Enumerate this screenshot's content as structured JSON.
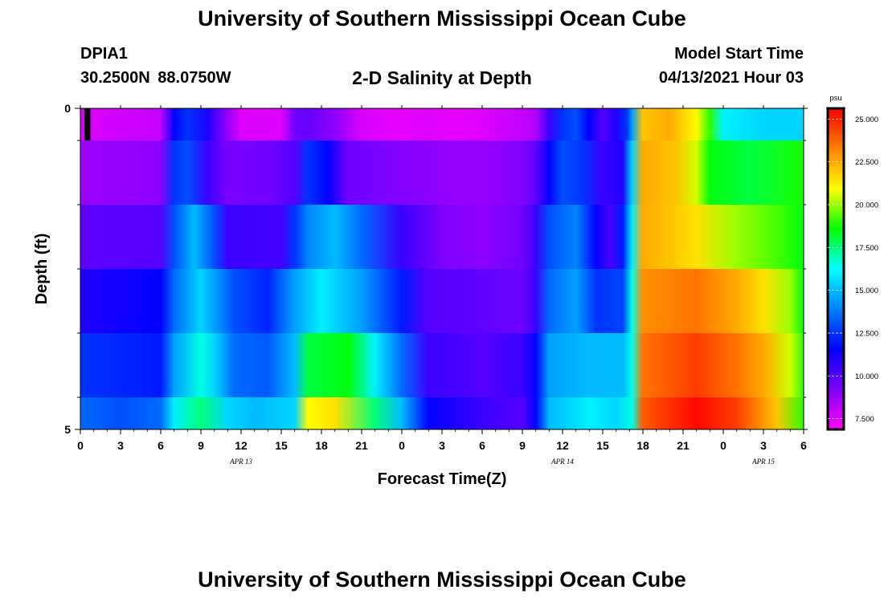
{
  "header": {
    "title": "University of Southern Mississippi Ocean Cube",
    "station_name": "DPIA1",
    "station_coords": "30.2500N  88.0750W",
    "chart_title": "2-D Salinity at Depth",
    "model_start_label": "Model Start Time",
    "model_start_value": "04/13/2021 Hour 03"
  },
  "footer": {
    "title": "University of Southern Mississippi Ocean Cube"
  },
  "colors": {
    "palette": [
      "#ff00ff",
      "#8000ff",
      "#0000ff",
      "#0080ff",
      "#00ffff",
      "#00ff00",
      "#ffff00",
      "#ff8000",
      "#ff0000"
    ]
  },
  "chart_data": {
    "type": "heatmap",
    "title": "2-D Salinity at Depth",
    "xlabel": "Forecast Time(Z)",
    "ylabel": "Depth (ft)",
    "xlim": [
      0,
      54
    ],
    "ylim": [
      0,
      5
    ],
    "x_tick_values": [
      0,
      3,
      6,
      9,
      12,
      15,
      18,
      21,
      24,
      27,
      30,
      33,
      36,
      39,
      42,
      45,
      48,
      51,
      54
    ],
    "x_tick_labels": [
      "0",
      "3",
      "6",
      "9",
      "12",
      "15",
      "18",
      "21",
      "0",
      "3",
      "6",
      "9",
      "12",
      "15",
      "18",
      "21",
      "0",
      "3",
      "6"
    ],
    "y_tick_values": [
      0,
      5
    ],
    "y_tick_labels": [
      "0",
      "5"
    ],
    "date_labels": [
      {
        "text": "APR 13",
        "x": 12
      },
      {
        "text": "APR 14",
        "x": 36
      },
      {
        "text": "APR 15",
        "x": 51
      }
    ],
    "depth_bands": [
      {
        "top": 0,
        "bottom": 0.5
      },
      {
        "top": 0.5,
        "bottom": 1.5
      },
      {
        "top": 1.5,
        "bottom": 2.5
      },
      {
        "top": 2.5,
        "bottom": 3.5
      },
      {
        "top": 3.5,
        "bottom": 4.5
      },
      {
        "top": 4.5,
        "bottom": 5
      }
    ],
    "rows": [
      [
        [
          0,
          7.5
        ],
        [
          6,
          8.0
        ],
        [
          7,
          11.5
        ],
        [
          8,
          12.5
        ],
        [
          9.5,
          11
        ],
        [
          10.5,
          9.5
        ],
        [
          12,
          7.5
        ],
        [
          15,
          7.5
        ],
        [
          16,
          9.5
        ],
        [
          17,
          9.7
        ],
        [
          19,
          9.0
        ],
        [
          21,
          7.6
        ],
        [
          24,
          7.3
        ],
        [
          26,
          7.5
        ],
        [
          28,
          7.3
        ],
        [
          30,
          7.5
        ],
        [
          33,
          8.0
        ],
        [
          34,
          8.3
        ],
        [
          35,
          10.5
        ],
        [
          36,
          12.5
        ],
        [
          37,
          13.0
        ],
        [
          38,
          11.5
        ],
        [
          39,
          10.0
        ],
        [
          40,
          11.0
        ],
        [
          40.8,
          12.5
        ],
        [
          41.2,
          14.5
        ],
        [
          42,
          22.0
        ],
        [
          44,
          22.5
        ],
        [
          46,
          21.0
        ],
        [
          47,
          19.0
        ],
        [
          48,
          16.0
        ],
        [
          51,
          15.5
        ],
        [
          54,
          15.5
        ]
      ],
      [
        [
          0,
          8.7
        ],
        [
          6,
          9.0
        ],
        [
          7,
          12.5
        ],
        [
          8,
          13.0
        ],
        [
          9.5,
          10.5
        ],
        [
          11,
          9.3
        ],
        [
          14,
          9.5
        ],
        [
          16,
          10.0
        ],
        [
          17,
          12.5
        ],
        [
          18.5,
          11.5
        ],
        [
          20,
          9.5
        ],
        [
          24,
          9.2
        ],
        [
          27,
          8.9
        ],
        [
          30,
          8.8
        ],
        [
          33,
          9.2
        ],
        [
          34,
          9.8
        ],
        [
          35,
          11.5
        ],
        [
          36,
          13.0
        ],
        [
          37.5,
          12.5
        ],
        [
          39,
          10.5
        ],
        [
          40.5,
          11.0
        ],
        [
          41.2,
          15.5
        ],
        [
          42,
          22.5
        ],
        [
          44.5,
          22.0
        ],
        [
          46,
          20.5
        ],
        [
          47,
          18.5
        ],
        [
          50,
          18.0
        ],
        [
          54,
          18.8
        ]
      ],
      [
        [
          0,
          9.8
        ],
        [
          6,
          10.0
        ],
        [
          7,
          13.0
        ],
        [
          8.5,
          15.0
        ],
        [
          10,
          13.0
        ],
        [
          11,
          10.5
        ],
        [
          15,
          10.3
        ],
        [
          16,
          12.5
        ],
        [
          17,
          14.0
        ],
        [
          19,
          15.0
        ],
        [
          21,
          13.5
        ],
        [
          24,
          10.5
        ],
        [
          27,
          9.3
        ],
        [
          30,
          9.0
        ],
        [
          33,
          9.5
        ],
        [
          34,
          10.5
        ],
        [
          35,
          13.0
        ],
        [
          37,
          14.0
        ],
        [
          38.5,
          11.5
        ],
        [
          39.5,
          10.2
        ],
        [
          40.5,
          12.0
        ],
        [
          41.2,
          16.0
        ],
        [
          42,
          22.5
        ],
        [
          46,
          21.5
        ],
        [
          49,
          20.0
        ],
        [
          51,
          19.5
        ],
        [
          54,
          18.5
        ]
      ],
      [
        [
          0,
          11.0
        ],
        [
          6,
          11.5
        ],
        [
          7,
          13.5
        ],
        [
          9,
          15.5
        ],
        [
          10.5,
          14.0
        ],
        [
          11.5,
          13.0
        ],
        [
          14,
          12.2
        ],
        [
          16,
          14.5
        ],
        [
          18,
          16.0
        ],
        [
          21,
          14.5
        ],
        [
          24,
          12.0
        ],
        [
          26,
          10.0
        ],
        [
          30,
          9.8
        ],
        [
          33,
          9.6
        ],
        [
          34,
          10.5
        ],
        [
          35,
          13.5
        ],
        [
          37,
          14.5
        ],
        [
          38.5,
          12.5
        ],
        [
          40.5,
          12.8
        ],
        [
          41.2,
          16.5
        ],
        [
          42,
          23.0
        ],
        [
          46,
          23.5
        ],
        [
          49,
          22.5
        ],
        [
          51,
          21.5
        ],
        [
          53,
          20.0
        ],
        [
          54,
          18.5
        ]
      ],
      [
        [
          0,
          12.5
        ],
        [
          6,
          12.0
        ],
        [
          7,
          14.5
        ],
        [
          9,
          16.5
        ],
        [
          10,
          15.5
        ],
        [
          11.5,
          13.5
        ],
        [
          14,
          13.2
        ],
        [
          16,
          15.0
        ],
        [
          17,
          18.0
        ],
        [
          20,
          18.5
        ],
        [
          22,
          16.0
        ],
        [
          24,
          13.5
        ],
        [
          26,
          10.5
        ],
        [
          30,
          10.0
        ],
        [
          33,
          10.5
        ],
        [
          34,
          11.5
        ],
        [
          35,
          14.5
        ],
        [
          38,
          15.0
        ],
        [
          40.5,
          15.0
        ],
        [
          41.2,
          16.5
        ],
        [
          42,
          23.5
        ],
        [
          46,
          24.5
        ],
        [
          49,
          23.5
        ],
        [
          51,
          22.5
        ],
        [
          53,
          20.5
        ],
        [
          54,
          19.0
        ]
      ],
      [
        [
          0,
          13.5
        ],
        [
          3,
          13.0
        ],
        [
          6,
          13.5
        ],
        [
          7,
          16.0
        ],
        [
          9,
          17.5
        ],
        [
          11,
          15.5
        ],
        [
          13,
          15.0
        ],
        [
          16,
          15.5
        ],
        [
          17,
          21.0
        ],
        [
          19,
          21.5
        ],
        [
          22,
          17.5
        ],
        [
          24,
          15.0
        ],
        [
          26,
          11.5
        ],
        [
          30,
          10.5
        ],
        [
          33,
          10.0
        ],
        [
          34,
          11.5
        ],
        [
          35,
          15.0
        ],
        [
          38,
          16.0
        ],
        [
          40,
          15.5
        ],
        [
          41.2,
          16.5
        ],
        [
          42,
          24.0
        ],
        [
          46,
          25.5
        ],
        [
          49,
          24.5
        ],
        [
          52,
          22.0
        ],
        [
          54,
          19.0
        ]
      ]
    ],
    "marker": {
      "x_start": 0.3,
      "x_end": 0.75,
      "depth_top": 0,
      "depth_bottom": 0.5
    },
    "colorbar": {
      "unit": "psu",
      "min": 6.875,
      "max": 25.625,
      "ticks": [
        7.5,
        10,
        12.5,
        15,
        17.5,
        20,
        22.5,
        25
      ],
      "tick_labels": [
        "7.500",
        "10.000",
        "12.500",
        "15.000",
        "17.500",
        "20.000",
        "22.500",
        "25.000"
      ]
    }
  }
}
